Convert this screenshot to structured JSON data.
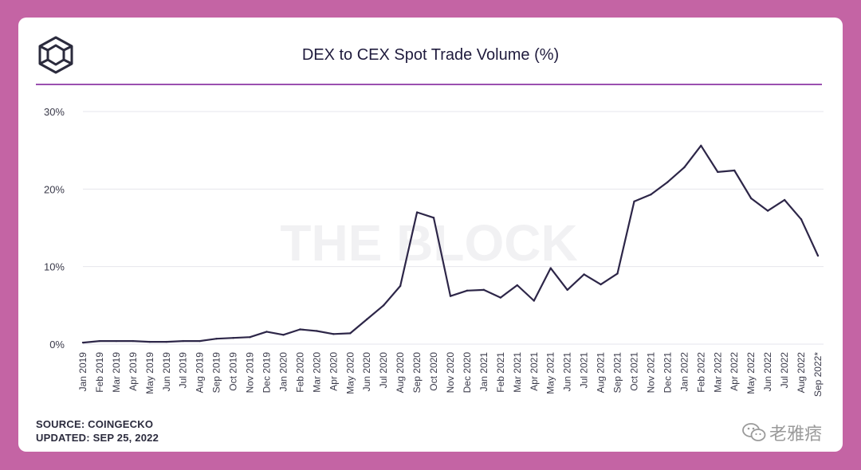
{
  "title": "DEX to CEX Spot Trade Volume (%)",
  "watermark_bg": "THE BLOCK",
  "footer": {
    "source": "SOURCE: COINGECKO",
    "updated": "UPDATED: SEP 25, 2022"
  },
  "wechat_watermark": "老雅痞",
  "colors": {
    "background": "#c464a4",
    "line": "#2d2648",
    "rule": "#9b50b0",
    "grid": "#e6e6ec"
  },
  "chart_data": {
    "type": "line",
    "title": "DEX to CEX Spot Trade Volume (%)",
    "xlabel": "",
    "ylabel": "",
    "ylim": [
      0,
      30
    ],
    "yticks": [
      "0%",
      "10%",
      "20%",
      "30%"
    ],
    "grid": true,
    "categories": [
      "Jan 2019",
      "Feb 2019",
      "Mar 2019",
      "Apr 2019",
      "May 2019",
      "Jun 2019",
      "Jul 2019",
      "Aug 2019",
      "Sep 2019",
      "Oct 2019",
      "Nov 2019",
      "Dec 2019",
      "Jan 2020",
      "Feb 2020",
      "Mar 2020",
      "Apr 2020",
      "May 2020",
      "Jun 2020",
      "Jul 2020",
      "Aug 2020",
      "Sep 2020",
      "Oct 2020",
      "Nov 2020",
      "Dec 2020",
      "Jan 2021",
      "Feb 2021",
      "Mar 2021",
      "Apr 2021",
      "May 2021",
      "Jun 2021",
      "Jul 2021",
      "Aug 2021",
      "Sep 2021",
      "Oct 2021",
      "Nov 2021",
      "Dec 2021",
      "Jan 2022",
      "Feb 2022",
      "Mar 2022",
      "Apr 2022",
      "May 2022",
      "Jun 2022",
      "Jul 2022",
      "Aug 2022",
      "Sep 2022*"
    ],
    "series": [
      {
        "name": "DEX to CEX Spot Trade Volume (%)",
        "values": [
          0.2,
          0.4,
          0.4,
          0.4,
          0.3,
          0.3,
          0.4,
          0.4,
          0.7,
          0.8,
          0.9,
          1.6,
          1.2,
          1.9,
          1.7,
          1.3,
          1.4,
          3.2,
          5.0,
          7.5,
          17.0,
          16.3,
          6.2,
          6.9,
          7.0,
          6.0,
          7.6,
          5.6,
          9.8,
          7.0,
          9.0,
          7.7,
          9.1,
          18.4,
          19.3,
          20.9,
          22.8,
          25.6,
          22.2,
          22.4,
          18.8,
          17.2,
          18.6,
          16.1,
          11.4
        ]
      }
    ]
  }
}
